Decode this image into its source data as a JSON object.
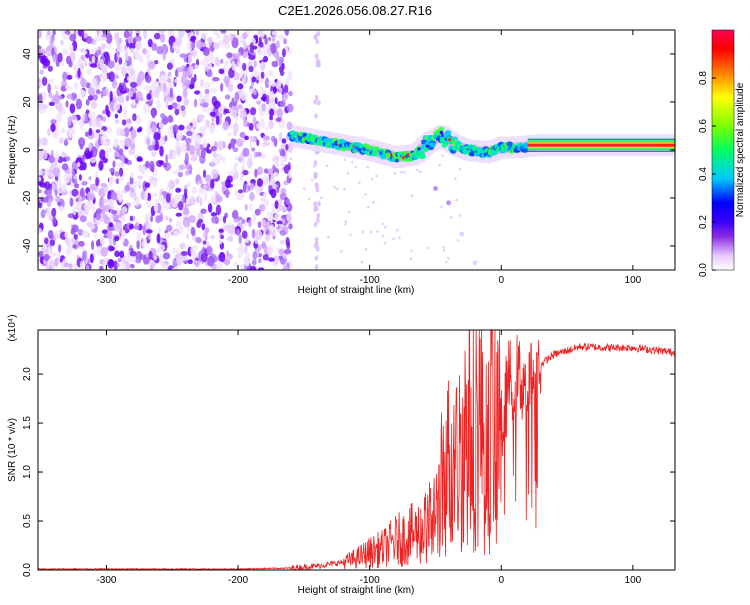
{
  "page_title": "C2E1.2026.056.08.27.R16",
  "chart_data": [
    {
      "type": "heatmap",
      "xlabel": "Height of straight line (km)",
      "ylabel": "Frequency (Hz)",
      "xlim": [
        -352,
        132
      ],
      "ylim": [
        -50,
        50
      ],
      "x_ticks": [
        -300,
        -200,
        -100,
        0,
        100
      ],
      "y_ticks": [
        -40,
        -20,
        0,
        20,
        40
      ],
      "colorbar": {
        "label": "Normalized spectral amplitude",
        "range": [
          0,
          1
        ],
        "ticks": [
          "0.0",
          "0.2",
          "0.4",
          "0.6",
          "0.8"
        ],
        "colors": [
          "#ffffff",
          "#e8c8ff",
          "#8a2be2",
          "#3a00ff",
          "#0000ff",
          "#00c8ff",
          "#00ff60",
          "#7cff00",
          "#ffff00",
          "#ff8000",
          "#ff0000",
          "#ff0050"
        ]
      },
      "noise_region_x": [
        -352,
        -160
      ],
      "ridge": {
        "x": [
          -160,
          -140,
          -120,
          -100,
          -80,
          -65,
          -55,
          -45,
          -35,
          -25,
          -10,
          0,
          10,
          30,
          60,
          132
        ],
        "y": [
          6,
          4,
          2,
          0,
          -3,
          -2,
          3,
          6,
          2,
          0,
          -1,
          1,
          1,
          2,
          2,
          2
        ]
      },
      "descending_trace": {
        "x": [
          -50,
          -40,
          -30,
          -20
        ],
        "y": [
          -16,
          -22,
          -35,
          -47
        ]
      }
    },
    {
      "type": "line",
      "xlabel": "Height of straight line (km)",
      "ylabel": "SNR (10 * v/v)",
      "y_multiplier": "(x10⁴)",
      "xlim": [
        -352,
        132
      ],
      "ylim": [
        0,
        2.45
      ],
      "x_ticks": [
        -300,
        -200,
        -100,
        0,
        100
      ],
      "y_ticks": [
        "0.0",
        "0.5",
        "1.0",
        "1.5",
        "2.0"
      ],
      "series": [
        {
          "color": "#ee2222",
          "x": [
            -352,
            -200,
            -160,
            -140,
            -120,
            -110,
            -100,
            -90,
            -80,
            -70,
            -60,
            -50,
            -45,
            -40,
            -35,
            -30,
            -25,
            -20,
            -15,
            -10,
            -5,
            0,
            5,
            10,
            20,
            30,
            40,
            60,
            80,
            100,
            132
          ],
          "y": [
            0.01,
            0.01,
            0.02,
            0.04,
            0.08,
            0.12,
            0.18,
            0.22,
            0.3,
            0.35,
            0.4,
            0.55,
            0.9,
            1.1,
            1.0,
            1.3,
            1.5,
            1.6,
            1.5,
            1.2,
            1.8,
            1.4,
            1.9,
            2.0,
            1.9,
            2.1,
            2.2,
            2.28,
            2.27,
            2.27,
            2.22
          ]
        }
      ]
    }
  ]
}
